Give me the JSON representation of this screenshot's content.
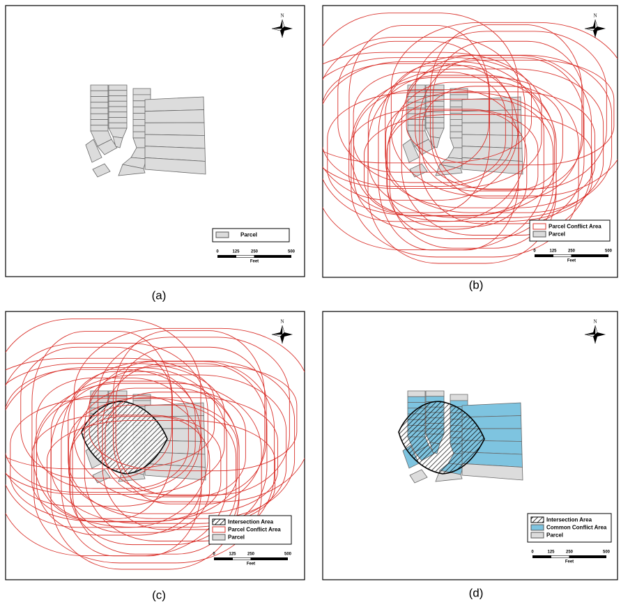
{
  "panels": [
    {
      "caption": "(a)",
      "north": "N",
      "legend": [
        "Parcel"
      ],
      "scale": {
        "ticks": [
          0,
          125,
          250,
          500
        ],
        "unit": "Feet"
      }
    },
    {
      "caption": "(b)",
      "north": "N",
      "legend": [
        "Parcel Conflict Area",
        "Parcel"
      ],
      "scale": {
        "ticks": [
          0,
          125,
          250,
          500
        ],
        "unit": "Feet"
      }
    },
    {
      "caption": "(c)",
      "north": "N",
      "legend": [
        "Intersection Area",
        "Parcel Conflict Area",
        "Parcel"
      ],
      "scale": {
        "ticks": [
          0,
          125,
          250,
          500
        ],
        "unit": "Feet"
      }
    },
    {
      "caption": "(d)",
      "north": "N",
      "legend": [
        "Intersection Area",
        "Common Conflict Area",
        "Parcel"
      ],
      "scale": {
        "ticks": [
          0,
          125,
          250,
          500
        ],
        "unit": "Feet"
      }
    }
  ]
}
